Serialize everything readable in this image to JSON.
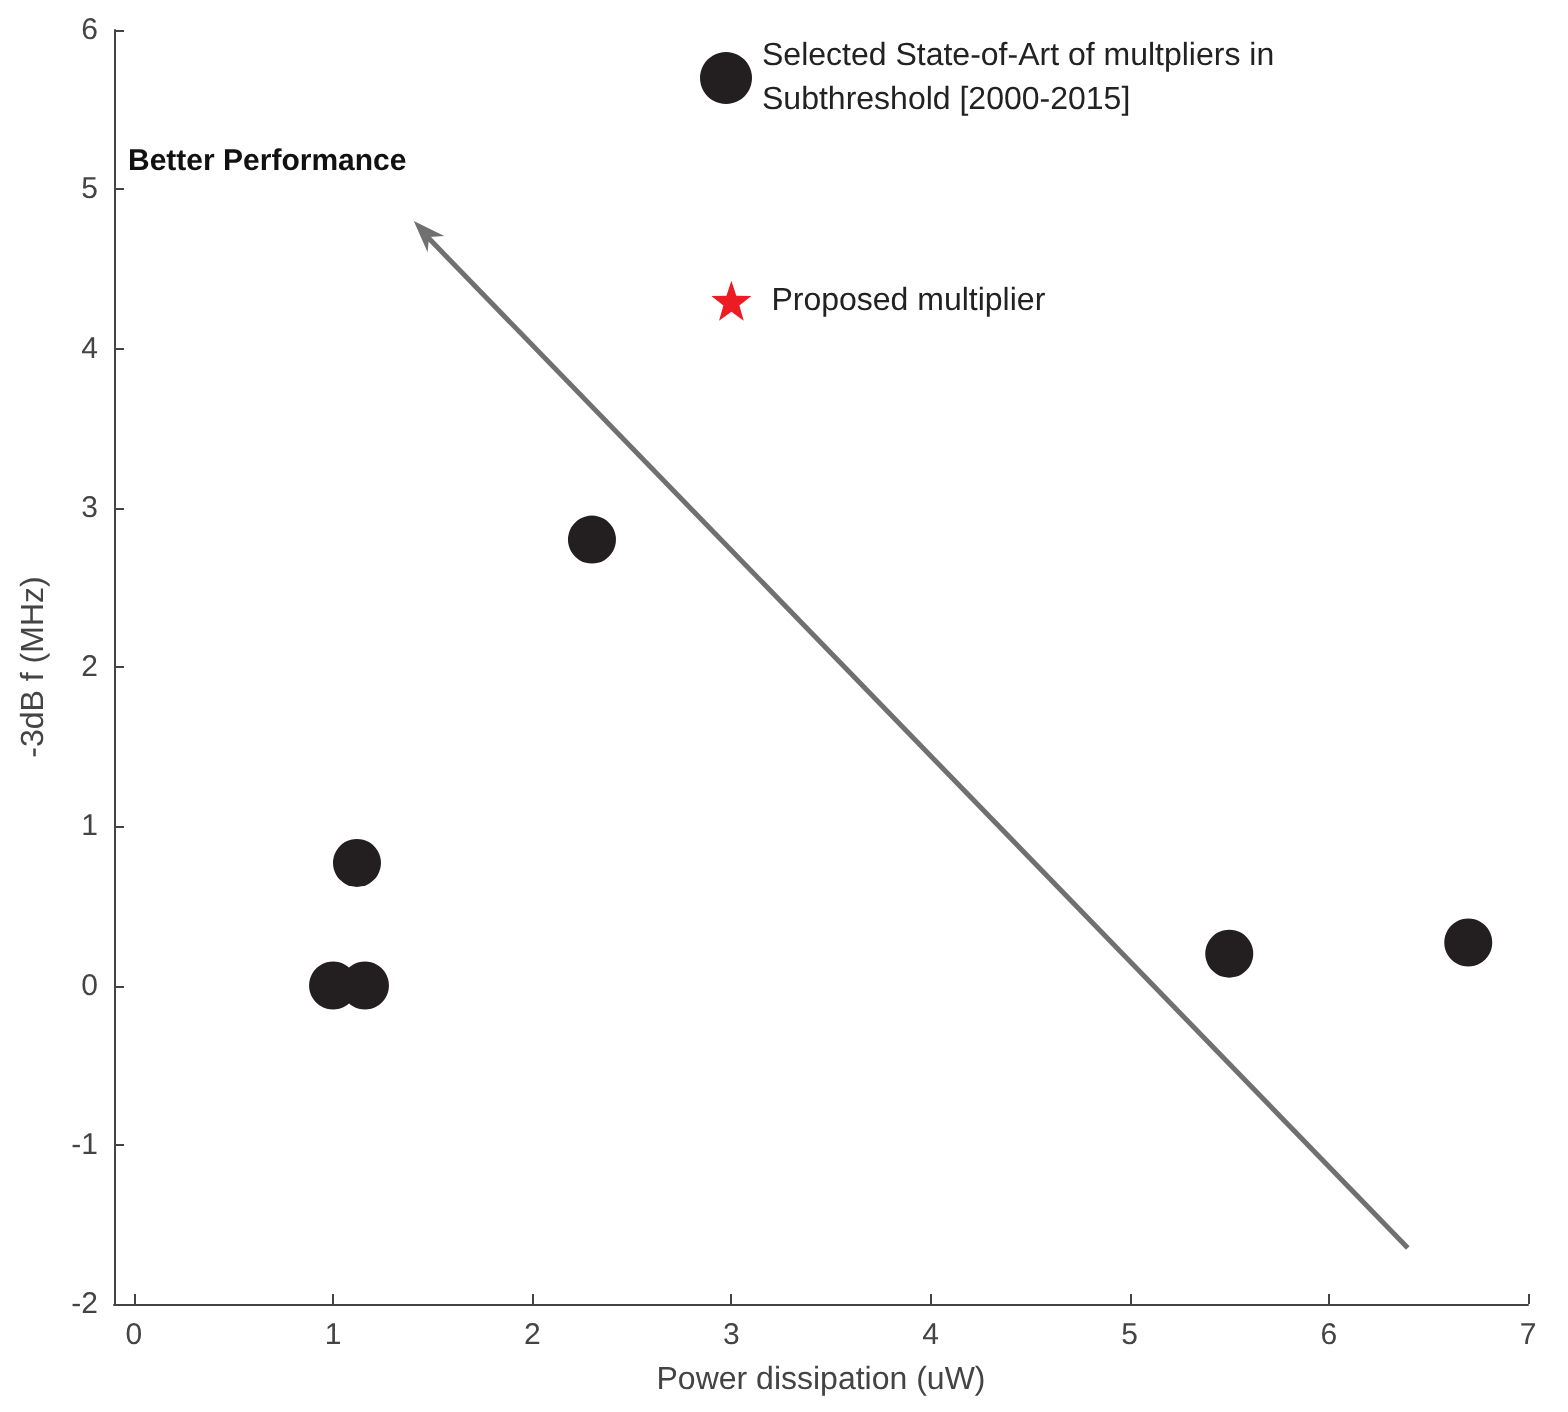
{
  "chart_data": {
    "type": "scatter",
    "xlabel": "Power dissipation (uW)",
    "ylabel": "-3dB f (MHz)",
    "xlim": [
      -0.1,
      7
    ],
    "xticks": [
      0,
      1,
      2,
      3,
      4,
      5,
      6,
      7
    ],
    "ylim": [
      -2,
      6
    ],
    "yticks": [
      -2,
      -1,
      0,
      1,
      2,
      3,
      4,
      5,
      6
    ],
    "grid": false,
    "legend": "top",
    "annotations": [
      "Better Performance"
    ],
    "series": [
      {
        "name": "Selected State-of-Art of multpliers in Subthreshold [2000-2015]",
        "color": "#231f20",
        "marker": "circle",
        "x": [
          1.0,
          1.16,
          1.12,
          2.3,
          5.5,
          6.7
        ],
        "values": [
          0,
          0,
          0.77,
          2.8,
          0.2,
          0.27
        ]
      },
      {
        "name": "Proposed multiplier",
        "color": "#ed1c24",
        "marker": "star",
        "x": [
          3.0
        ],
        "values": [
          4.3
        ]
      }
    ]
  }
}
